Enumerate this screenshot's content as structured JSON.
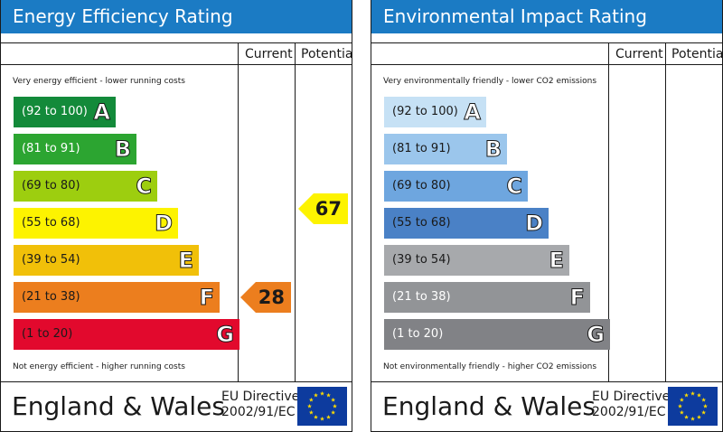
{
  "colors": {
    "header_bg": "#1b7bc4",
    "flag_bg": "#0d3b9e",
    "star": "#ffdd00"
  },
  "energy": {
    "title": "Energy Efficiency Rating",
    "col_current": "Current",
    "col_potential": "Potential",
    "top_note": "Very energy efficient - lower running costs",
    "bottom_note": "Not energy efficient - higher running costs",
    "bands": [
      {
        "range": "(92 to 100)",
        "letter": "A",
        "color": "#138a3a",
        "text_color": "#ffffff"
      },
      {
        "range": "(81 to 91)",
        "letter": "B",
        "color": "#2ca531",
        "text_color": "#ffffff"
      },
      {
        "range": "(69 to 80)",
        "letter": "C",
        "color": "#9dce0f",
        "text_color": "#1a1a1a"
      },
      {
        "range": "(55 to 68)",
        "letter": "D",
        "color": "#fdf300",
        "text_color": "#1a1a1a"
      },
      {
        "range": "(39 to 54)",
        "letter": "E",
        "color": "#f1c009",
        "text_color": "#1a1a1a"
      },
      {
        "range": "(21 to 38)",
        "letter": "F",
        "color": "#ec7e1e",
        "text_color": "#1a1a1a"
      },
      {
        "range": "(1 to 20)",
        "letter": "G",
        "color": "#e2092d",
        "text_color": "#1a1a1a"
      }
    ],
    "current": {
      "value": "28",
      "band": "F",
      "color": "#ec7e1e"
    },
    "potential": {
      "value": "67",
      "band": "D",
      "color": "#fdf300"
    },
    "footer_country": "England & Wales",
    "footer_directive_1": "EU Directive",
    "footer_directive_2": "2002/91/EC"
  },
  "environment": {
    "title": "Environmental Impact Rating",
    "col_current": "Current",
    "col_potential": "Potential",
    "top_note": "Very environmentally friendly - lower CO2 emissions",
    "bottom_note": "Not environmentally friendly - higher CO2 emissions",
    "bands": [
      {
        "range": "(92 to 100)",
        "letter": "A",
        "color": "#c6e1f5",
        "text_color": "#1a1a1a"
      },
      {
        "range": "(81 to 91)",
        "letter": "B",
        "color": "#9bc6ec",
        "text_color": "#1a1a1a"
      },
      {
        "range": "(69 to 80)",
        "letter": "C",
        "color": "#6ea6df",
        "text_color": "#1a1a1a"
      },
      {
        "range": "(55 to 68)",
        "letter": "D",
        "color": "#4a81c6",
        "text_color": "#1a1a1a"
      },
      {
        "range": "(39 to 54)",
        "letter": "E",
        "color": "#a7a9ac",
        "text_color": "#1a1a1a"
      },
      {
        "range": "(21 to 38)",
        "letter": "F",
        "color": "#929497",
        "text_color": "#ffffff"
      },
      {
        "range": "(1 to 20)",
        "letter": "G",
        "color": "#818286",
        "text_color": "#ffffff"
      }
    ],
    "footer_country": "England & Wales",
    "footer_directive_1": "EU Directive",
    "footer_directive_2": "2002/91/EC"
  }
}
